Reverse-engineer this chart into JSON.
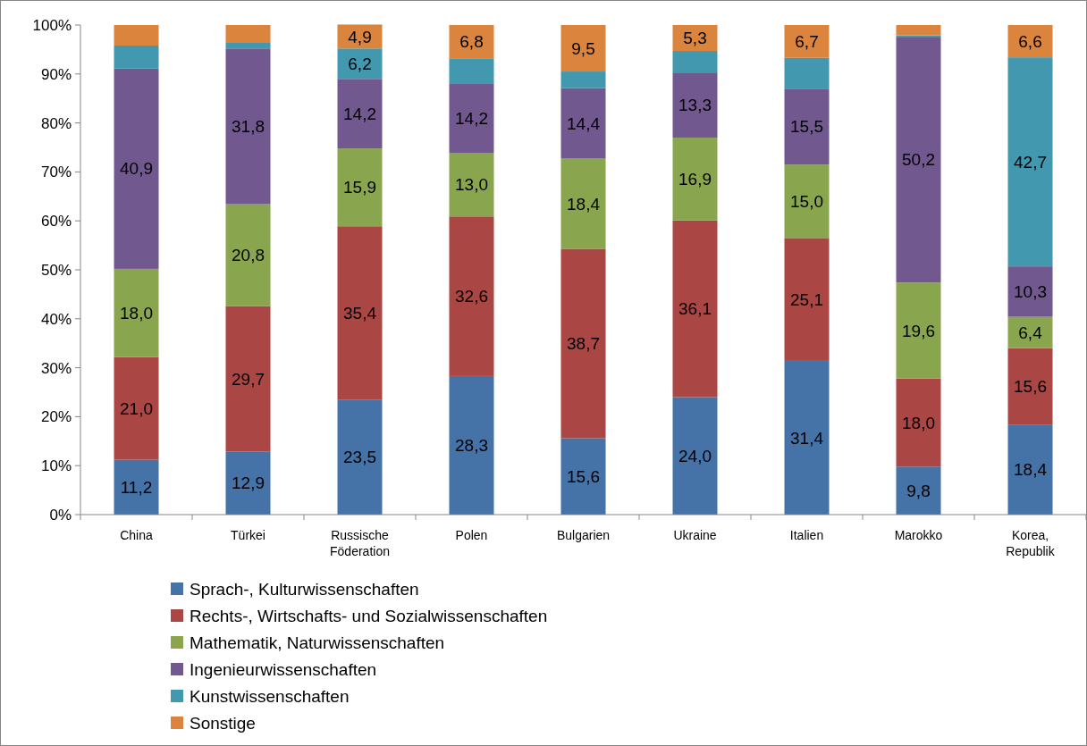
{
  "chart_data": {
    "type": "bar",
    "stacked": true,
    "categories": [
      "China",
      "Türkei",
      "Russische Föderation",
      "Polen",
      "Bulgarien",
      "Ukraine",
      "Italien",
      "Marokko",
      "Korea, Republik"
    ],
    "series": [
      {
        "name": "Sprach-, Kulturwissenschaften",
        "color": "#4572a7",
        "values": [
          11.2,
          12.9,
          23.5,
          28.3,
          15.6,
          24.0,
          31.4,
          9.8,
          18.4
        ],
        "value_labels": [
          "11,2",
          "12,9",
          "23,5",
          "28,3",
          "15,6",
          "24,0",
          "31,4",
          "9,8",
          "18,4"
        ]
      },
      {
        "name": "Rechts-, Wirtschafts- und Sozialwissenschaften",
        "color": "#aa4643",
        "values": [
          21.0,
          29.7,
          35.4,
          32.6,
          38.7,
          36.1,
          25.1,
          18.0,
          15.6
        ],
        "value_labels": [
          "21,0",
          "29,7",
          "35,4",
          "32,6",
          "38,7",
          "36,1",
          "25,1",
          "18,0",
          "15,6"
        ]
      },
      {
        "name": "Mathematik, Naturwissenschaften",
        "color": "#89a54e",
        "values": [
          18.0,
          20.8,
          15.9,
          13.0,
          18.4,
          16.9,
          15.0,
          19.6,
          6.4
        ],
        "value_labels": [
          "18,0",
          "20,8",
          "15,9",
          "13,0",
          "18,4",
          "16,9",
          "15,0",
          "19,6",
          "6,4"
        ]
      },
      {
        "name": "Ingenieurwissenschaften",
        "color": "#71588f",
        "values": [
          40.9,
          31.8,
          14.2,
          14.2,
          14.4,
          13.3,
          15.5,
          50.2,
          10.3
        ],
        "value_labels": [
          "40,9",
          "31,8",
          "14,2",
          "14,2",
          "14,4",
          "13,3",
          "15,5",
          "50,2",
          "10,3"
        ]
      },
      {
        "name": "Kunstwissenschaften",
        "color": "#4198af",
        "values": [
          4.7,
          1.3,
          6.2,
          5.1,
          3.4,
          4.4,
          6.3,
          0.3,
          42.7
        ],
        "value_labels": [
          null,
          null,
          "6,2",
          null,
          null,
          null,
          null,
          null,
          "42,7"
        ]
      },
      {
        "name": "Sonstige",
        "color": "#db843d",
        "values": [
          4.2,
          3.5,
          4.9,
          6.8,
          9.5,
          5.3,
          6.7,
          2.1,
          6.6
        ],
        "value_labels": [
          null,
          null,
          "4,9",
          "6,8",
          "9,5",
          "5,3",
          "6,7",
          null,
          "6,6"
        ]
      }
    ],
    "ylim": [
      0,
      100
    ],
    "yticks": [
      {
        "value": 0,
        "label": "0%"
      },
      {
        "value": 10,
        "label": "10%"
      },
      {
        "value": 20,
        "label": "20%"
      },
      {
        "value": 30,
        "label": "30%"
      },
      {
        "value": 40,
        "label": "40%"
      },
      {
        "value": 50,
        "label": "50%"
      },
      {
        "value": 60,
        "label": "60%"
      },
      {
        "value": 70,
        "label": "70%"
      },
      {
        "value": 80,
        "label": "80%"
      },
      {
        "value": 90,
        "label": "90%"
      },
      {
        "value": 100,
        "label": "100%"
      }
    ],
    "legend": "bottom"
  }
}
